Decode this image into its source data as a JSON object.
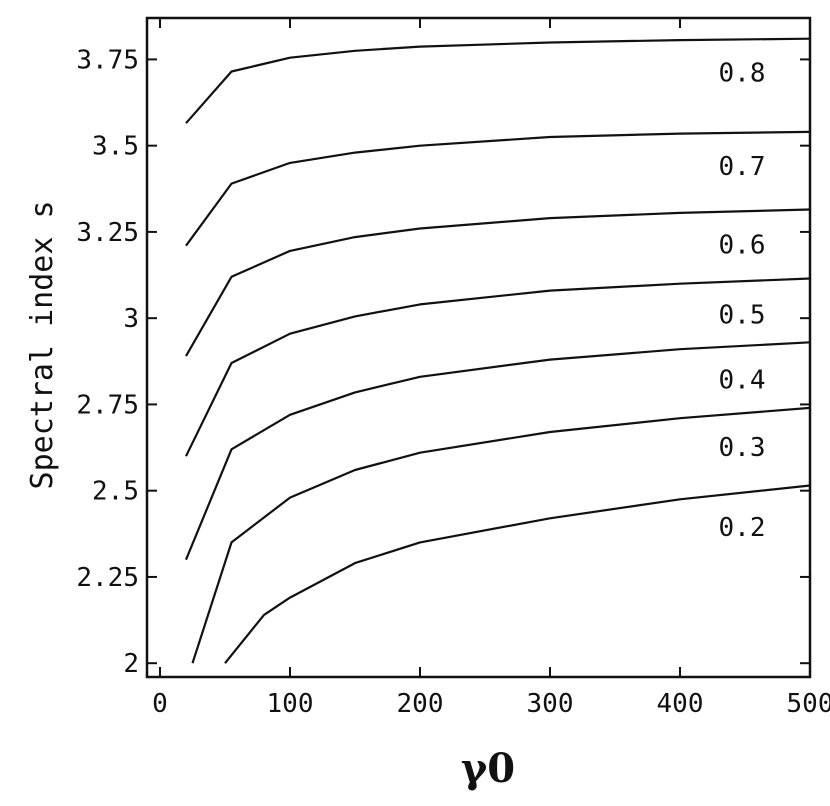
{
  "chart_data": {
    "type": "line",
    "title": "",
    "xlabel": "γ0",
    "ylabel": "Spectral index s",
    "xlim": [
      -10,
      500
    ],
    "ylim": [
      1.96,
      3.87
    ],
    "xticks": [
      0,
      100,
      200,
      300,
      400,
      500
    ],
    "xtick_labels": [
      "0",
      "100",
      "200",
      "300",
      "400",
      "500"
    ],
    "yticks": [
      2,
      2.25,
      2.5,
      2.75,
      3,
      3.25,
      3.5,
      3.75
    ],
    "ytick_labels": [
      "2",
      "2.25",
      "2.5",
      "2.75",
      "3",
      "3.25",
      "3.5",
      "3.75"
    ],
    "grid": false,
    "series": [
      {
        "name": "0.8",
        "x": [
          20,
          55,
          100,
          150,
          200,
          300,
          400,
          500
        ],
        "y": [
          3.565,
          3.715,
          3.755,
          3.775,
          3.787,
          3.799,
          3.806,
          3.81
        ]
      },
      {
        "name": "0.7",
        "x": [
          20,
          55,
          100,
          150,
          200,
          300,
          400,
          500
        ],
        "y": [
          3.21,
          3.39,
          3.45,
          3.48,
          3.5,
          3.525,
          3.535,
          3.54
        ]
      },
      {
        "name": "0.6",
        "x": [
          20,
          55,
          100,
          150,
          200,
          300,
          400,
          500
        ],
        "y": [
          2.89,
          3.12,
          3.195,
          3.235,
          3.26,
          3.29,
          3.305,
          3.315
        ]
      },
      {
        "name": "0.5",
        "x": [
          20,
          55,
          100,
          150,
          200,
          300,
          400,
          500
        ],
        "y": [
          2.6,
          2.87,
          2.955,
          3.005,
          3.04,
          3.08,
          3.1,
          3.115
        ]
      },
      {
        "name": "0.4",
        "x": [
          20,
          55,
          100,
          150,
          200,
          300,
          400,
          500
        ],
        "y": [
          2.3,
          2.62,
          2.72,
          2.785,
          2.83,
          2.88,
          2.91,
          2.93
        ]
      },
      {
        "name": "0.3",
        "x": [
          25,
          55,
          100,
          150,
          200,
          300,
          400,
          500
        ],
        "y": [
          2.0,
          2.35,
          2.48,
          2.56,
          2.61,
          2.67,
          2.71,
          2.74
        ]
      },
      {
        "name": "0.2",
        "x": [
          50,
          80,
          100,
          150,
          200,
          300,
          400,
          500
        ],
        "y": [
          2.0,
          2.14,
          2.19,
          2.29,
          2.35,
          2.42,
          2.475,
          2.515
        ]
      }
    ]
  }
}
